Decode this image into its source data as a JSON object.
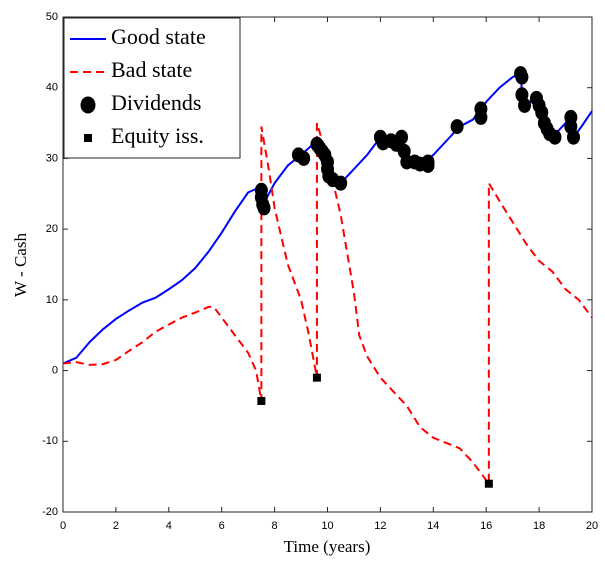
{
  "chart_data": {
    "type": "line",
    "xlabel": "Time (years)",
    "ylabel": "W - Cash",
    "xlim": [
      0,
      20
    ],
    "ylim": [
      -20,
      50
    ],
    "xticks": [
      0,
      2,
      4,
      6,
      8,
      10,
      12,
      14,
      16,
      18,
      20
    ],
    "yticks": [
      -20,
      -10,
      0,
      10,
      20,
      30,
      40,
      50
    ],
    "legend": "upper-left",
    "series": [
      {
        "name": "Good state",
        "type": "line",
        "color": "#0000ff",
        "dashed": false,
        "x": [
          0,
          0.5,
          1,
          1.5,
          2,
          2.5,
          3,
          3.5,
          4,
          4.5,
          5,
          5.5,
          6,
          6.5,
          7,
          7.5,
          7.5,
          8,
          8.5,
          9,
          9.6,
          9.6,
          10,
          10.5,
          11,
          11.5,
          12,
          12.5,
          13,
          13.7,
          14,
          14.5,
          15,
          15.5,
          16,
          16.5,
          17,
          17.3,
          17.4,
          17.8,
          18.1,
          18.5,
          19,
          19.2,
          19.3,
          19.6,
          20
        ],
        "values": [
          1,
          1.8,
          4,
          5.8,
          7.3,
          8.5,
          9.6,
          10.3,
          11.5,
          12.8,
          14.5,
          16.8,
          19.5,
          22.5,
          25.2,
          26,
          23,
          26.5,
          29,
          30.5,
          32.5,
          31,
          28,
          26.5,
          28.5,
          30.5,
          33,
          32.5,
          29,
          29.5,
          30.5,
          32.5,
          34.5,
          35.5,
          38,
          40,
          41.5,
          42,
          37,
          38.5,
          36,
          33,
          35,
          36,
          33,
          34.5,
          36.7
        ]
      },
      {
        "name": "Bad state",
        "type": "line",
        "color": "#ff0000",
        "dashed": true,
        "x": [
          0,
          0.5,
          1,
          1.5,
          2,
          2.5,
          3,
          3.5,
          4,
          4.5,
          5,
          5.5,
          5.7,
          6,
          6.5,
          7,
          7.3,
          7.5,
          7.5,
          7.8,
          8,
          8.5,
          9,
          9.3,
          9.6,
          9.6,
          10,
          10.5,
          11,
          11.2,
          11.5,
          12,
          12.5,
          13,
          13.5,
          14,
          15,
          15.5,
          16,
          16.1,
          16.1,
          16.5,
          17,
          17.5,
          18,
          18.5,
          19,
          19.5,
          20
        ],
        "values": [
          1,
          1.2,
          0.8,
          0.9,
          1.5,
          2.8,
          4,
          5.5,
          6.5,
          7.5,
          8.2,
          9,
          9,
          7.5,
          5,
          2.5,
          0,
          -4.3,
          34.5,
          28,
          23,
          15,
          10,
          5,
          -1,
          35,
          30,
          22,
          11,
          5,
          2,
          -1,
          -3,
          -5,
          -8,
          -9.5,
          -11,
          -13,
          -15.5,
          -16,
          26.5,
          24,
          21,
          18,
          15.5,
          14,
          11.5,
          10,
          7.5
        ]
      },
      {
        "name": "Dividends",
        "type": "scatter",
        "marker": "circle",
        "color": "#000000",
        "x": [
          7.5,
          7.5,
          7.55,
          7.6,
          8.9,
          9.1,
          9.6,
          9.7,
          9.8,
          9.9,
          10,
          10,
          10.05,
          10.2,
          10.5,
          12,
          12.1,
          12.4,
          12.6,
          12.8,
          12.9,
          13,
          13.3,
          13.5,
          13.8,
          13.8,
          14.9,
          15.8,
          15.8,
          17.3,
          17.35,
          17.35,
          17.45,
          17.9,
          18,
          18.1,
          18.2,
          18.3,
          18.4,
          18.6,
          19.2,
          19.2,
          19.3
        ],
        "values": [
          25.5,
          24.5,
          23.5,
          23,
          30.5,
          30,
          32,
          31.5,
          31,
          30.5,
          29.5,
          28.5,
          27.5,
          27,
          26.5,
          33,
          32.2,
          32.5,
          32,
          33,
          31,
          29.5,
          29.5,
          29.2,
          29.5,
          29,
          34.5,
          37,
          35.8,
          42,
          41.5,
          39,
          37.5,
          38.5,
          37.5,
          36.5,
          35,
          34.2,
          33.5,
          33,
          35.8,
          34.5,
          33
        ]
      },
      {
        "name": "Equity iss.",
        "type": "scatter",
        "marker": "square",
        "color": "#000000",
        "x": [
          7.5,
          9.6,
          16.1
        ],
        "values": [
          -4.3,
          -1,
          -16
        ]
      }
    ]
  }
}
